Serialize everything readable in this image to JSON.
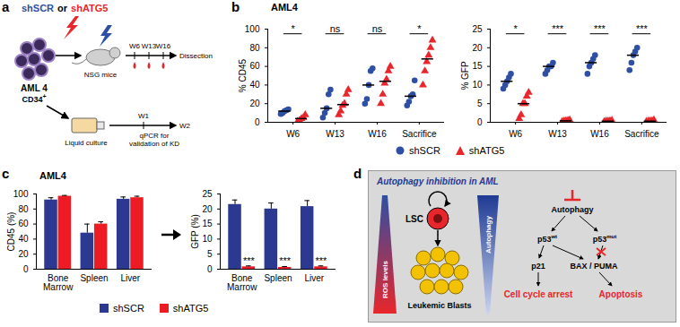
{
  "chart_data": [
    {
      "panel": "b",
      "type": "scatter",
      "title": "AML4",
      "legend": "bottom",
      "categories": [
        "W6",
        "W13",
        "W16",
        "Sacrifice"
      ],
      "ylabel": "% CD45",
      "ylim": [
        0,
        100
      ],
      "yticks": [
        0,
        20,
        40,
        60,
        80,
        100
      ],
      "significance": [
        "*",
        "ns",
        "ns",
        "*"
      ],
      "series": [
        {
          "name": "shSCR",
          "color": "#2e4fa3",
          "marker": "circle",
          "values": [
            [
              9,
              10,
              12,
              13,
              14
            ],
            [
              5,
              10,
              15,
              30,
              35
            ],
            [
              20,
              25,
              40,
              55,
              58
            ],
            [
              18,
              22,
              28,
              30,
              45
            ]
          ],
          "medians": [
            12,
            15,
            40,
            28
          ]
        },
        {
          "name": "shATG5",
          "color": "#e8262b",
          "marker": "triangle",
          "values": [
            [
              1,
              2,
              4,
              5,
              8
            ],
            [
              8,
              12,
              18,
              20,
              30,
              35
            ],
            [
              20,
              30,
              42,
              46,
              55,
              60
            ],
            [
              40,
              55,
              65,
              72,
              80,
              88
            ]
          ],
          "medians": [
            4,
            19,
            44,
            68
          ]
        }
      ]
    },
    {
      "panel": "b",
      "type": "scatter",
      "categories": [
        "W6",
        "W13",
        "W16",
        "Sacrifice"
      ],
      "ylabel": "% GFP",
      "ylim": [
        0,
        25
      ],
      "yticks": [
        0,
        5,
        10,
        15,
        20,
        25
      ],
      "significance": [
        "*",
        "***",
        "***",
        "***"
      ],
      "series": [
        {
          "name": "shSCR",
          "color": "#2e4fa3",
          "marker": "circle",
          "values": [
            [
              9,
              10,
              11,
              12,
              13
            ],
            [
              13,
              14,
              15,
              15,
              16
            ],
            [
              13,
              15,
              16,
              17,
              18
            ],
            [
              14,
              16,
              18,
              19,
              20
            ]
          ],
          "medians": [
            11,
            15,
            16,
            18
          ]
        },
        {
          "name": "shATG5",
          "color": "#e8262b",
          "marker": "triangle",
          "values": [
            [
              1,
              2,
              5,
              5,
              7,
              8
            ],
            [
              0.2,
              0.3,
              0.4,
              0.5,
              0.6
            ],
            [
              0.2,
              0.3,
              0.3,
              0.4,
              0.5
            ],
            [
              0.2,
              0.3,
              0.3,
              0.4,
              0.6
            ]
          ],
          "medians": [
            5,
            0.4,
            0.3,
            0.3
          ]
        }
      ]
    },
    {
      "panel": "c",
      "type": "bar",
      "title": "AML4",
      "legend": "bottom",
      "categories": [
        "Bone Marrow",
        "Spleen",
        "Liver"
      ],
      "ylabel": "CD45 (%)",
      "ylim": [
        0,
        100
      ],
      "yticks": [
        0,
        20,
        40,
        60,
        80,
        100
      ],
      "series": [
        {
          "name": "shSCR",
          "color": "#2b3990",
          "values": [
            92,
            48,
            93
          ],
          "errors": [
            3,
            12,
            3
          ]
        },
        {
          "name": "shATG5",
          "color": "#ed1c24",
          "values": [
            97,
            60,
            95
          ],
          "errors": [
            1,
            3,
            2
          ]
        }
      ]
    },
    {
      "panel": "c",
      "type": "bar",
      "categories": [
        "Bone Marrow",
        "Spleen",
        "Liver"
      ],
      "ylabel": "GFP (%)",
      "ylim": [
        0,
        25
      ],
      "yticks": [
        0,
        5,
        10,
        15,
        20,
        25
      ],
      "significance": [
        "***",
        "***",
        "***"
      ],
      "series": [
        {
          "name": "shSCR",
          "color": "#2b3990",
          "values": [
            21.5,
            20,
            20.8
          ],
          "errors": [
            1.5,
            2,
            2
          ]
        },
        {
          "name": "shATG5",
          "color": "#ed1c24",
          "values": [
            0.8,
            0.6,
            0.8
          ],
          "errors": [
            0.3,
            0.3,
            0.3
          ]
        }
      ]
    }
  ],
  "diagram_a": {
    "panel": "a",
    "vector": [
      "shSCR",
      "or",
      "shATG5"
    ],
    "cells": "AML 4",
    "surface": "CD34",
    "surface_sup": "+",
    "host": "NSG mice",
    "vivo_timepoints": [
      "W6",
      "W13",
      "W16"
    ],
    "vivo_end": "Dissection",
    "culture": "Liquid culture",
    "vitro_timepoints": [
      "W1",
      "W2"
    ],
    "assay": "qPCR for validation of KD"
  },
  "diagram_d": {
    "panel": "d",
    "title": "Autophagy inhibition in AML",
    "lsc": "LSC",
    "blasts": "Leukemic Blasts",
    "gradient_left": "ROS levels",
    "gradient_right": "Autophagy",
    "target": "Autophagy",
    "p53_wt": [
      "p53",
      "wt"
    ],
    "p53_mut": [
      "p53",
      "mut"
    ],
    "p21": "p21",
    "bax": "BAX / PUMA",
    "outcome_1": "Cell cycle arrest",
    "outcome_2": "Apoptosis"
  }
}
